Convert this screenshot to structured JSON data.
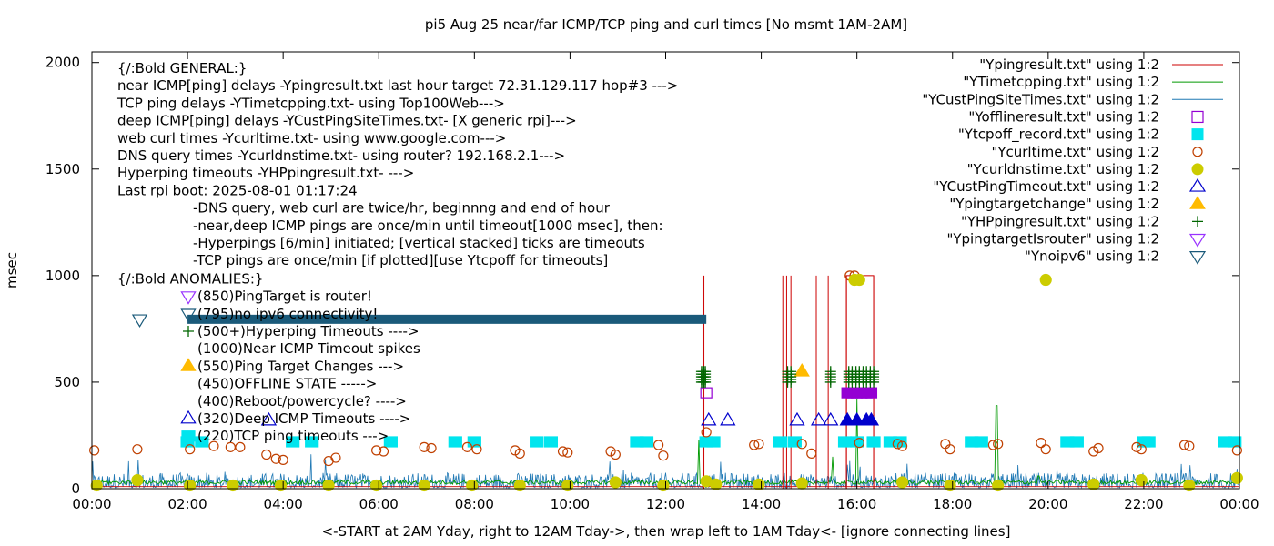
{
  "chart_data": {
    "type": "scatter",
    "title": "pi5 Aug 25  near/far ICMP/TCP ping and curl times [No msmt 1AM-2AM]",
    "xlabel": "<-START at 2AM Yday, right to 12AM Tday->, then wrap left to 1AM Tday<- [ignore connecting lines]",
    "ylabel": "msec",
    "xlim": [
      0,
      24
    ],
    "ylim": [
      0,
      2050
    ],
    "x_ticks": [
      0,
      2,
      4,
      6,
      8,
      10,
      12,
      14,
      16,
      18,
      20,
      22,
      24
    ],
    "x_tick_labels": [
      "00:00",
      "02:00",
      "04:00",
      "06:00",
      "08:00",
      "10:00",
      "12:00",
      "14:00",
      "16:00",
      "18:00",
      "20:00",
      "22:00",
      "00:00"
    ],
    "y_ticks": [
      0,
      500,
      1000,
      1500,
      2000
    ],
    "y_tick_labels": [
      "0",
      "500",
      "1000",
      "1500",
      "2000"
    ],
    "grid": false,
    "legend_position": "top-right",
    "annotations": {
      "general_lines": [
        "{/:Bold GENERAL:}",
        "near ICMP[ping] delays -Ypingresult.txt last hour target 72.31.129.117 hop#3 --->",
        "TCP ping delays -YTimetcpping.txt- using Top100Web--->",
        "deep ICMP[ping] delays -YCustPingSiteTimes.txt- [X generic rpi]--->",
        "web curl times -Ycurltime.txt- using www.google.com--->",
        "DNS query times -Ycurldnstime.txt- using router? 192.168.2.1--->",
        "Hyperping timeouts -YHPpingresult.txt- --->",
        "Last rpi boot: 2025-08-01 01:17:24"
      ],
      "note_lines": [
        "-DNS query, web curl are twice/hr, beginnng and end of hour",
        "-near,deep ICMP pings are once/min until timeout[1000 msec], then:",
        "  -Hyperpings [6/min] initiated; [vertical stacked] ticks are timeouts",
        "-TCP pings are once/min [if plotted][use Ytcpoff for timeouts]"
      ],
      "anomalies_heading": "{/:Bold ANOMALIES:}",
      "anomaly_lines": [
        "(850)PingTarget is router!",
        "(795)no ipv6 connectivity!",
        "(500+)Hyperping Timeouts ---->",
        "(1000)Near ICMP Timeout spikes",
        "(550)Ping Target Changes --->",
        "(450)OFFLINE STATE ----->",
        "(400)Reboot/powercycle? ---->",
        "(320)Deep ICMP Timeouts ---->",
        "(220)TCP ping timeouts --->"
      ]
    },
    "series": [
      {
        "name": "\"Ypingresult.txt\" using 1:2",
        "style": "line",
        "color": "#cc0000",
        "spikes_x": [
          12.78,
          12.8,
          14.45,
          14.53,
          14.62,
          15.15,
          15.4,
          15.78,
          16.35
        ],
        "spike_y": 1000,
        "offline_box": {
          "x": [
            15.78,
            16.35
          ],
          "y": 1000
        }
      },
      {
        "name": "\"YTimetcpping.txt\" using 1:2",
        "style": "line",
        "color": "#009900",
        "baseline_y": 30,
        "spikes": [
          [
            12.7,
            230
          ],
          [
            15.5,
            150
          ],
          [
            16.0,
            420
          ],
          [
            18.92,
            390
          ],
          [
            19.8,
            60
          ]
        ]
      },
      {
        "name": "\"YCustPingSiteTimes.txt\" using 1:2",
        "style": "line",
        "color": "#1f78b4",
        "baseline_range": [
          5,
          75
        ]
      },
      {
        "name": "\"Yofflineresult.txt\" using 1:2",
        "style": "open-square",
        "color": "#9400d3",
        "x": [
          12.85,
          15.8,
          15.9,
          16.0,
          16.1,
          16.2,
          16.3
        ],
        "y": 450
      },
      {
        "name": "\"Ytcpoff_record.txt\" using 1:2",
        "style": "filled-square",
        "color": "#00e5ee",
        "x": [
          2.0,
          2.3,
          4.2,
          4.6,
          6.25,
          7.6,
          8.0,
          9.3,
          9.6,
          11.4,
          11.6,
          12.85,
          13.0,
          14.4,
          14.7,
          15.75,
          16.0,
          16.35,
          16.7,
          16.9,
          18.4,
          18.6,
          20.4,
          20.6,
          22.0,
          22.1,
          23.7,
          23.9
        ],
        "y": 220
      },
      {
        "name": "\"Ycurltime.txt\" using 1:2",
        "style": "open-circle",
        "color": "#c04000",
        "points": [
          [
            0.05,
            180
          ],
          [
            0.95,
            185
          ],
          [
            2.05,
            185
          ],
          [
            2.55,
            200
          ],
          [
            2.9,
            195
          ],
          [
            3.1,
            195
          ],
          [
            3.65,
            160
          ],
          [
            3.85,
            140
          ],
          [
            4.0,
            135
          ],
          [
            4.95,
            130
          ],
          [
            5.1,
            145
          ],
          [
            5.95,
            180
          ],
          [
            6.1,
            175
          ],
          [
            6.95,
            195
          ],
          [
            7.1,
            190
          ],
          [
            7.85,
            195
          ],
          [
            8.05,
            185
          ],
          [
            8.85,
            180
          ],
          [
            8.95,
            165
          ],
          [
            9.85,
            175
          ],
          [
            9.95,
            170
          ],
          [
            10.85,
            175
          ],
          [
            10.95,
            160
          ],
          [
            11.85,
            205
          ],
          [
            11.95,
            155
          ],
          [
            12.85,
            265
          ],
          [
            13.85,
            205
          ],
          [
            13.95,
            210
          ],
          [
            14.85,
            210
          ],
          [
            15.05,
            165
          ],
          [
            15.85,
            1000
          ],
          [
            15.95,
            1000
          ],
          [
            16.05,
            215
          ],
          [
            16.85,
            210
          ],
          [
            16.95,
            200
          ],
          [
            17.85,
            210
          ],
          [
            17.95,
            185
          ],
          [
            18.85,
            205
          ],
          [
            18.95,
            210
          ],
          [
            19.85,
            215
          ],
          [
            19.95,
            185
          ],
          [
            20.95,
            175
          ],
          [
            21.05,
            190
          ],
          [
            21.85,
            195
          ],
          [
            21.95,
            185
          ],
          [
            22.85,
            205
          ],
          [
            22.95,
            200
          ],
          [
            23.95,
            180
          ]
        ]
      },
      {
        "name": "\"Ycurldnstime.txt\" using 1:2",
        "style": "filled-circle",
        "color": "#cccc00",
        "points": [
          [
            0.1,
            15
          ],
          [
            0.95,
            40
          ],
          [
            2.05,
            15
          ],
          [
            2.95,
            15
          ],
          [
            3.95,
            15
          ],
          [
            4.95,
            15
          ],
          [
            5.95,
            15
          ],
          [
            6.95,
            15
          ],
          [
            7.95,
            15
          ],
          [
            8.95,
            15
          ],
          [
            9.95,
            15
          ],
          [
            10.95,
            30
          ],
          [
            11.95,
            15
          ],
          [
            12.85,
            35
          ],
          [
            13.05,
            20
          ],
          [
            13.95,
            20
          ],
          [
            14.85,
            25
          ],
          [
            15.95,
            980
          ],
          [
            16.05,
            980
          ],
          [
            16.95,
            30
          ],
          [
            17.95,
            15
          ],
          [
            18.95,
            15
          ],
          [
            19.95,
            980
          ],
          [
            20.95,
            20
          ],
          [
            21.95,
            40
          ],
          [
            22.95,
            15
          ],
          [
            23.95,
            50
          ]
        ]
      },
      {
        "name": "\"YCustPingTimeout.txt\" using 1:2",
        "style": "open-triangle-up",
        "color": "#0000cc",
        "x": [
          3.7,
          12.9,
          13.3,
          14.75,
          15.2,
          15.45,
          15.8,
          16.0,
          16.2,
          16.3
        ],
        "y": 320
      },
      {
        "name": "\"Ypingtargetchange\" using 1:2",
        "style": "filled-triangle-up",
        "color": "#ffbb00",
        "x": [
          14.85
        ],
        "y": 550
      },
      {
        "name": "\"YHPpingresult.txt\" using 1:2",
        "style": "plus",
        "color": "#006600",
        "x": [
          12.75,
          12.78,
          12.8,
          12.83,
          14.55,
          14.62,
          15.45,
          15.83,
          15.9,
          15.98,
          16.05,
          16.13,
          16.2,
          16.28,
          16.35
        ],
        "y_range": [
          500,
          550
        ]
      },
      {
        "name": "\"YpingtargetIsrouter\" using 1:2",
        "style": "open-triangle-down",
        "color": "#9933ff",
        "points": []
      },
      {
        "name": "\"Ynoipv6\" using 1:2",
        "style": "open-triangle-down",
        "color": "#1a5a7a",
        "points": [
          [
            1.0,
            795
          ]
        ],
        "bar_x": [
          2.0,
          12.85
        ],
        "bar_y": 795
      }
    ]
  }
}
